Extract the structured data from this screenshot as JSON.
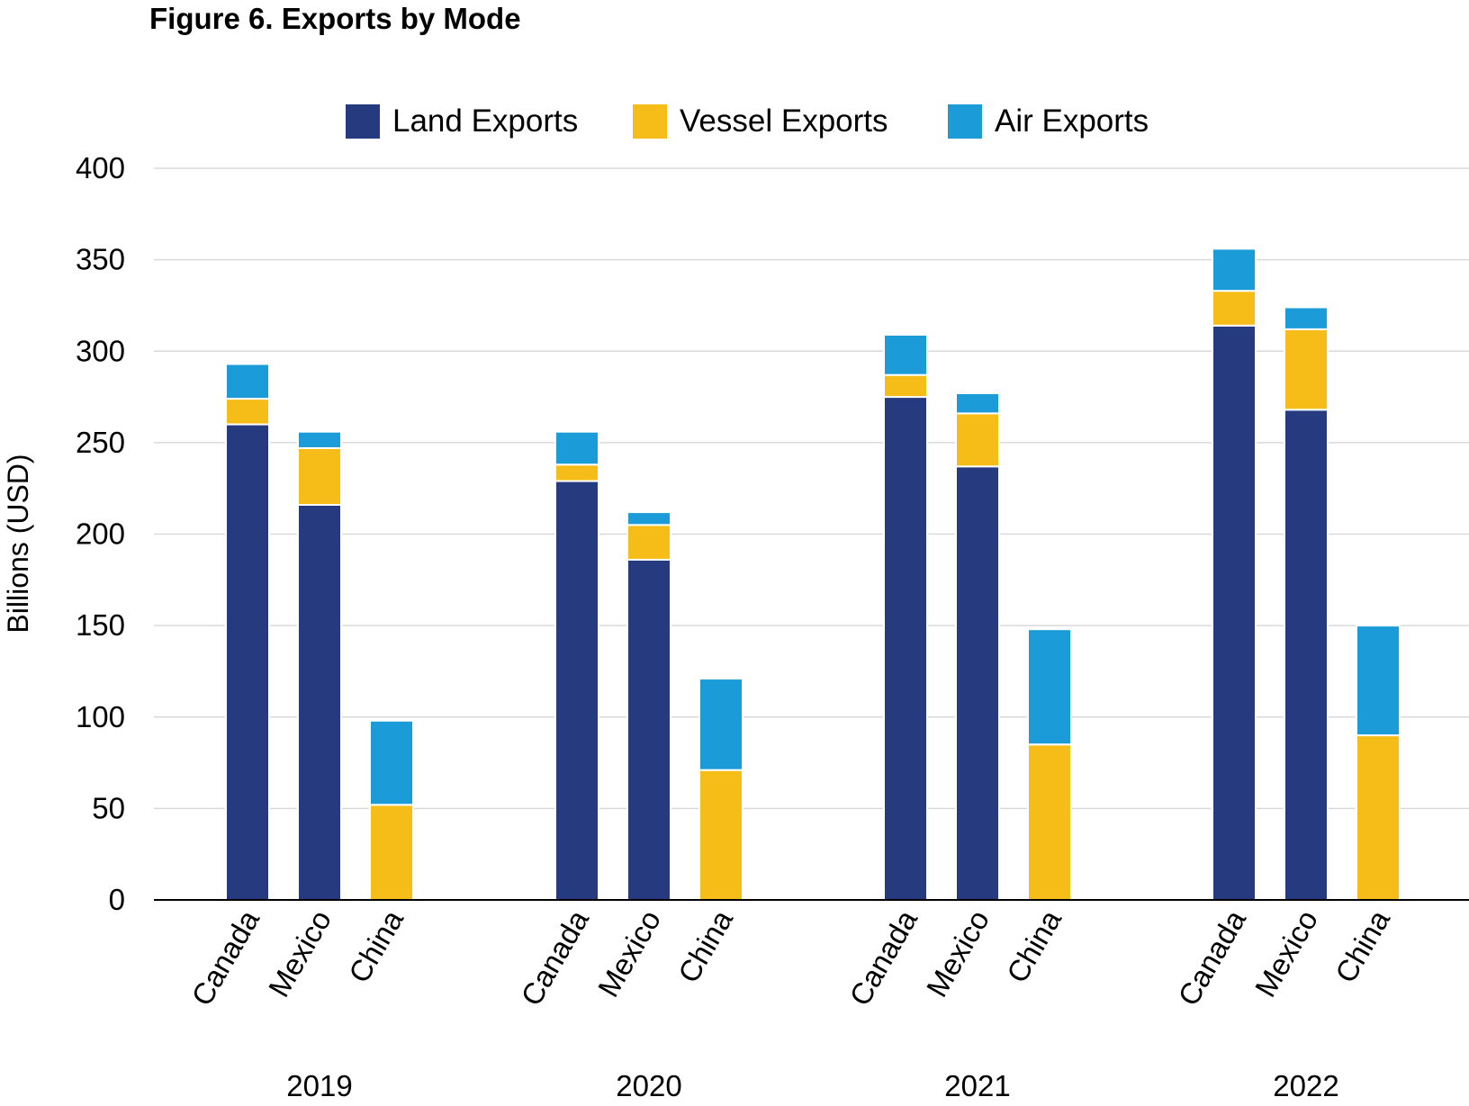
{
  "chart_data": {
    "type": "bar",
    "stacked": true,
    "title": "Figure 6. Exports by Mode",
    "ylabel": "Billions (USD)",
    "xlabel": "",
    "ylim": [
      0,
      400
    ],
    "yticks": [
      0,
      50,
      100,
      150,
      200,
      250,
      300,
      350,
      400
    ],
    "grid": true,
    "legend_position": "top-center",
    "groups": [
      {
        "label": "2019",
        "categories": [
          "Canada",
          "Mexico",
          "China"
        ]
      },
      {
        "label": "2020",
        "categories": [
          "Canada",
          "Mexico",
          "China"
        ]
      },
      {
        "label": "2021",
        "categories": [
          "Canada",
          "Mexico",
          "China"
        ]
      },
      {
        "label": "2022",
        "categories": [
          "Canada",
          "Mexico",
          "China"
        ]
      }
    ],
    "series": [
      {
        "name": "Land Exports",
        "color": "#253a7f",
        "values": [
          260,
          216,
          0,
          229,
          186,
          0,
          275,
          237,
          0,
          314,
          268,
          0
        ]
      },
      {
        "name": "Vessel Exports",
        "color": "#f6bc18",
        "values": [
          14,
          31,
          52,
          9,
          19,
          71,
          12,
          29,
          85,
          19,
          44,
          90
        ]
      },
      {
        "name": "Air Exports",
        "color": "#1b9bd7",
        "values": [
          19,
          9,
          46,
          18,
          7,
          50,
          22,
          11,
          63,
          23,
          12,
          60
        ]
      }
    ]
  }
}
